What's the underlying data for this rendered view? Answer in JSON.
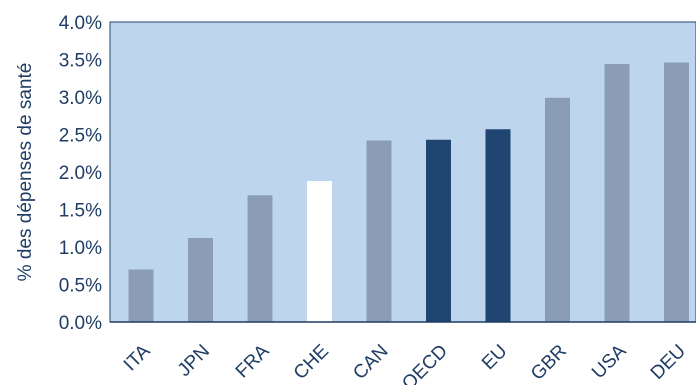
{
  "chart_data": {
    "type": "bar",
    "ylabel": "% des dépenses de santé",
    "categories": [
      "ITA",
      "JPN",
      "FRA",
      "CHE",
      "CAN",
      "OECD",
      "EU",
      "GBR",
      "USA",
      "DEU"
    ],
    "values": [
      0.7,
      1.12,
      1.69,
      1.88,
      2.42,
      2.43,
      2.57,
      2.99,
      3.44,
      3.46
    ],
    "bar_colors": [
      "#8a9db5",
      "#8a9db5",
      "#8a9db5",
      "#ffffff",
      "#8a9db5",
      "#1f4570",
      "#1f4570",
      "#8a9db5",
      "#8a9db5",
      "#8a9db5"
    ],
    "ylim": [
      0,
      4
    ],
    "y_ticks": [
      "0.0%",
      "0.5%",
      "1.0%",
      "1.5%",
      "2.0%",
      "2.5%",
      "3.0%",
      "3.5%",
      "4.0%"
    ],
    "grid": false,
    "legend": "none",
    "plot_background": "#bed6ed"
  }
}
